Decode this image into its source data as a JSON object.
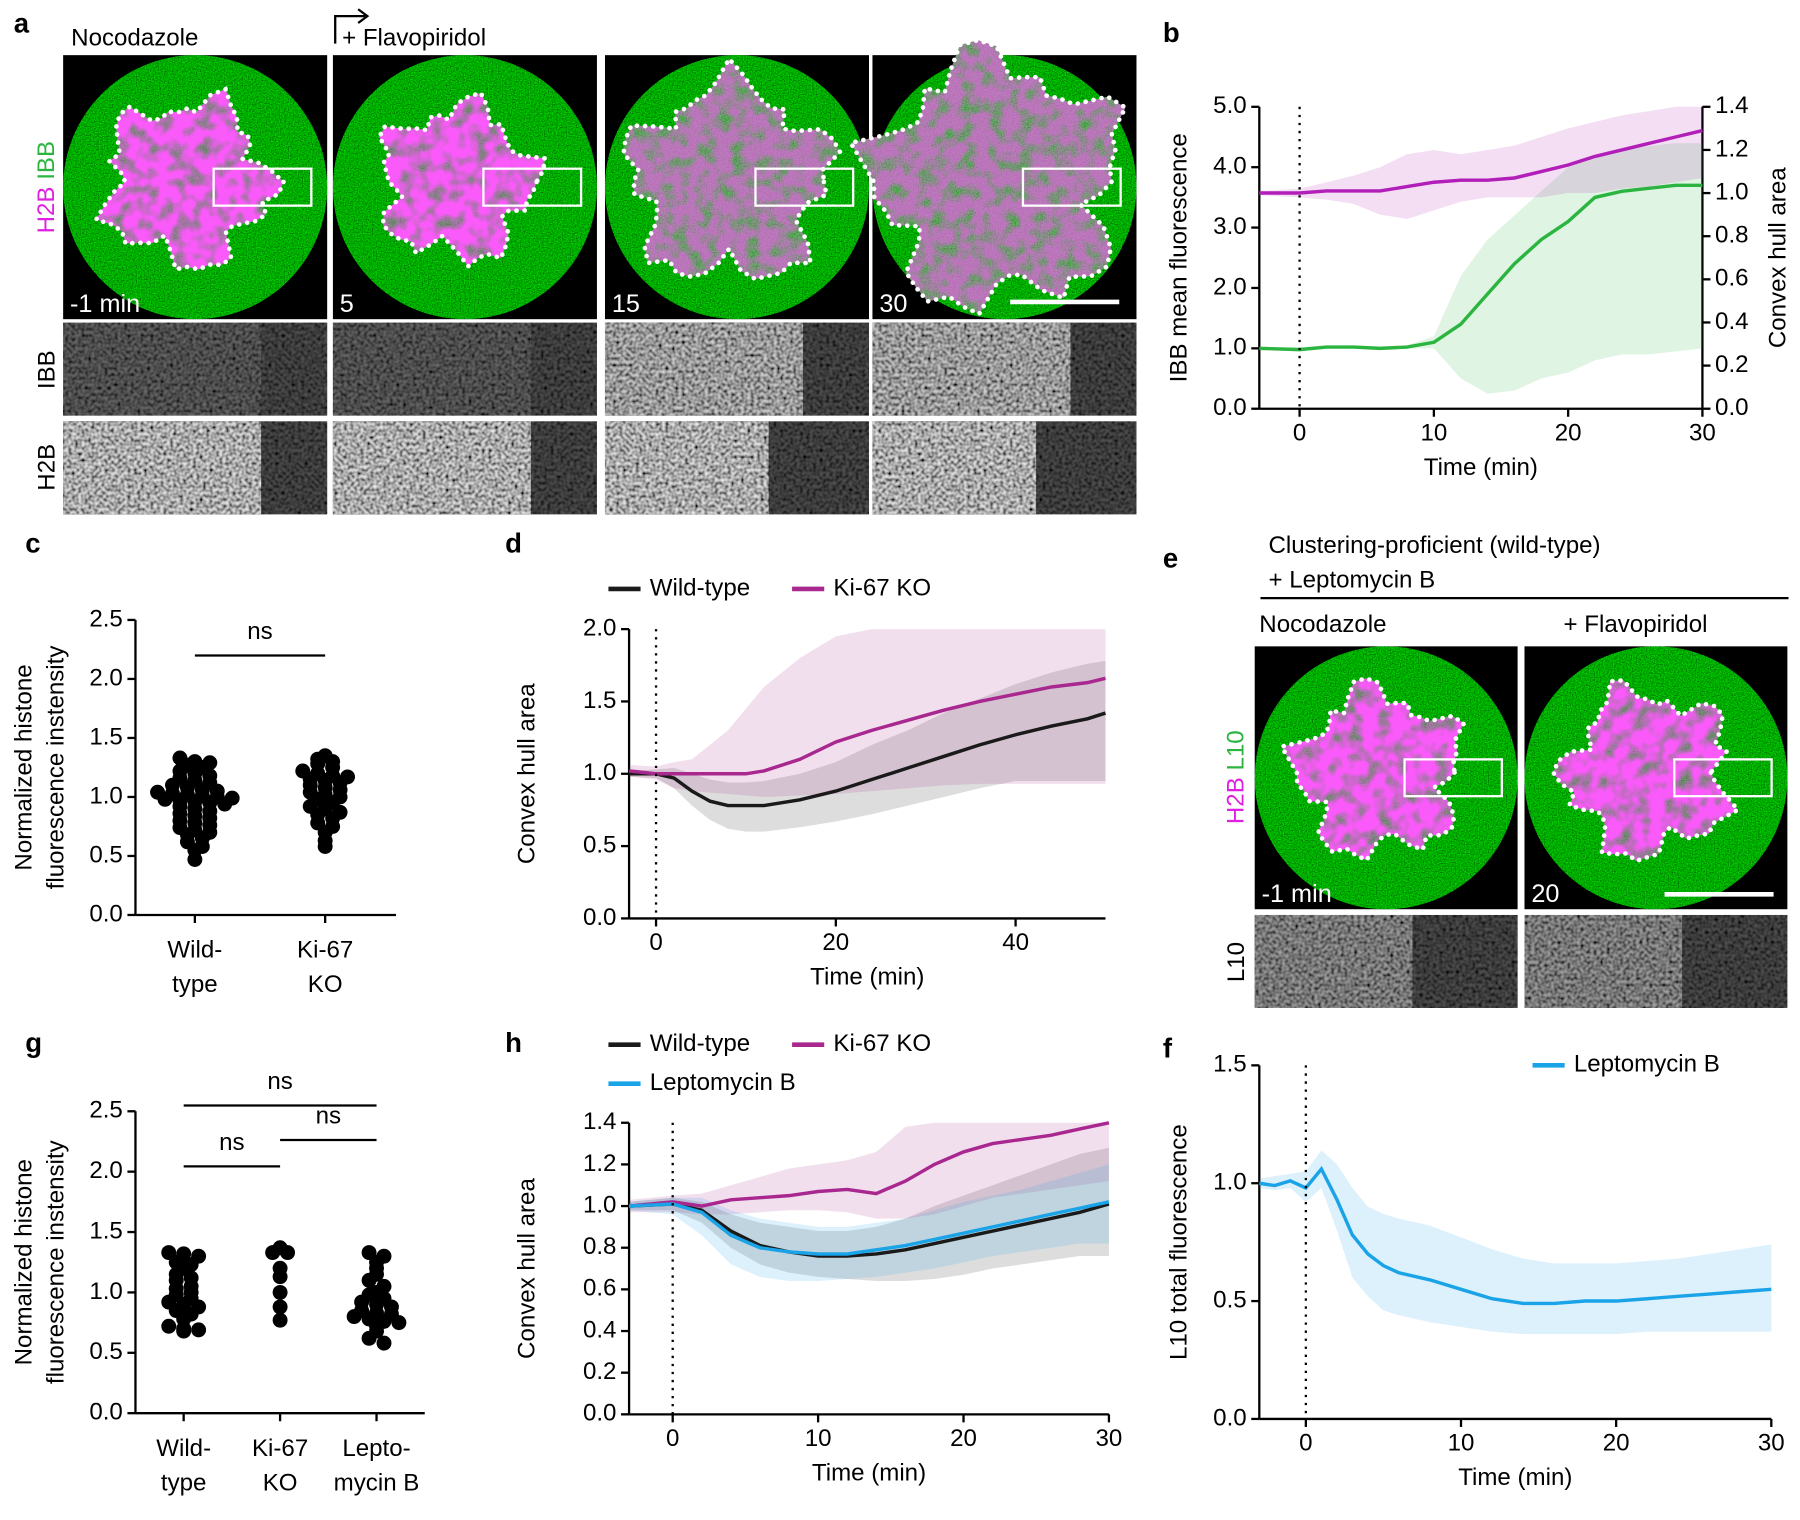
{
  "figure_a": {
    "panel": "a",
    "conditions": [
      "Nocodazole",
      "+ Flavopiridol"
    ],
    "stain": [
      "H2B",
      "IBB"
    ],
    "timepoints": [
      "-1 min",
      "5",
      "15",
      "30"
    ],
    "rows": [
      "IBB",
      "H2B"
    ]
  },
  "figure_e": {
    "panel": "e",
    "header": [
      "Clustering-proficient (wild-type)",
      "+ Leptomycin B"
    ],
    "conditions": [
      "Nocodazole",
      "+ Flavopiridol"
    ],
    "stain": [
      "H2B",
      "L10"
    ],
    "timepoints": [
      "-1 min",
      "20"
    ],
    "rows": [
      "L10"
    ]
  },
  "chart_data": [
    {
      "type": "line",
      "panel": "b",
      "xlabel": "Time (min)",
      "ylabel": "IBB mean fluorescence",
      "y2label": "Convex hull area",
      "x": [
        -3,
        0,
        2,
        4,
        6,
        8,
        10,
        12,
        14,
        16,
        18,
        20,
        22,
        24,
        26,
        28,
        30
      ],
      "xlim": [
        -3,
        30
      ],
      "xticks": [
        0,
        10,
        20,
        30
      ],
      "ylim": [
        0,
        5
      ],
      "yticks": [
        {
          "value": 0,
          "label": "0.0"
        },
        {
          "value": 1,
          "label": "1.0"
        },
        {
          "value": 2,
          "label": "2.0"
        },
        {
          "value": 3,
          "label": "3.0"
        },
        {
          "value": 4,
          "label": "4.0"
        },
        {
          "value": 5,
          "label": "5.0"
        }
      ],
      "y2lim": [
        0,
        1.4
      ],
      "y2ticks": [
        {
          "value": 0,
          "label": "0.0"
        },
        {
          "value": 0.2,
          "label": "0.2"
        },
        {
          "value": 0.4,
          "label": "0.4"
        },
        {
          "value": 0.6,
          "label": "0.6"
        },
        {
          "value": 0.8,
          "label": "0.8"
        },
        {
          "value": 1,
          "label": "1.0"
        },
        {
          "value": 1.2,
          "label": "1.2"
        },
        {
          "value": 1.4,
          "label": "1.4"
        }
      ],
      "vline": 0,
      "series": [
        {
          "color": "#2bb540",
          "values": [
            1.0,
            0.98,
            1.02,
            1.02,
            1.0,
            1.02,
            1.1,
            1.4,
            1.9,
            2.4,
            2.8,
            3.1,
            3.5,
            3.6,
            3.65,
            3.7,
            3.7
          ],
          "lower": [
            0.98,
            0.95,
            1.0,
            1.0,
            0.98,
            1.0,
            1.0,
            0.5,
            0.25,
            0.3,
            0.5,
            0.6,
            0.8,
            0.9,
            0.9,
            0.95,
            1.0
          ],
          "upper": [
            1.02,
            1.02,
            1.05,
            1.05,
            1.03,
            1.05,
            1.2,
            2.2,
            2.8,
            3.2,
            3.6,
            4.0,
            4.2,
            4.3,
            4.35,
            4.4,
            4.4
          ]
        },
        {
          "color": "#b21fb8",
          "axis": "y2",
          "values": [
            1.0,
            1.0,
            1.01,
            1.01,
            1.01,
            1.03,
            1.05,
            1.06,
            1.06,
            1.07,
            1.1,
            1.13,
            1.17,
            1.2,
            1.23,
            1.26,
            1.29
          ],
          "lower": [
            0.99,
            0.98,
            0.97,
            0.95,
            0.9,
            0.88,
            0.92,
            0.96,
            0.98,
            0.98,
            0.98,
            1.0,
            1.0,
            1.02,
            1.03,
            1.05,
            1.07
          ],
          "upper": [
            1.01,
            1.02,
            1.05,
            1.08,
            1.12,
            1.18,
            1.2,
            1.18,
            1.2,
            1.22,
            1.26,
            1.3,
            1.33,
            1.36,
            1.38,
            1.4,
            1.4
          ]
        }
      ]
    },
    {
      "type": "strip",
      "panel": "c",
      "ylabel": [
        "Normalized histone",
        "fluorescence instensity"
      ],
      "categories": [
        [
          "Wild-",
          "type"
        ],
        [
          "Ki-67",
          "KO"
        ]
      ],
      "ylim": [
        0,
        2.5
      ],
      "yticks": [
        {
          "value": 0,
          "label": "0.0"
        },
        {
          "value": 0.5,
          "label": "0.5"
        },
        {
          "value": 1,
          "label": "1.0"
        },
        {
          "value": 1.5,
          "label": "1.5"
        },
        {
          "value": 2,
          "label": "2.0"
        },
        {
          "value": 2.5,
          "label": "2.5"
        }
      ],
      "color": "#000000",
      "values": [
        [
          1.33,
          1.3,
          1.29,
          1.27,
          1.25,
          1.22,
          1.2,
          1.18,
          1.16,
          1.14,
          1.12,
          1.1,
          1.08,
          1.06,
          1.05,
          1.04,
          1.03,
          1.02,
          1.01,
          1.0,
          0.99,
          0.98,
          0.97,
          0.96,
          0.95,
          0.94,
          0.92,
          0.9,
          0.88,
          0.86,
          0.84,
          0.82,
          0.8,
          0.78,
          0.76,
          0.74,
          0.72,
          0.7,
          0.68,
          0.65,
          0.62,
          0.58,
          0.55,
          0.47
        ],
        [
          1.35,
          1.32,
          1.3,
          1.28,
          1.25,
          1.22,
          1.2,
          1.18,
          1.17,
          1.15,
          1.14,
          1.12,
          1.1,
          1.08,
          1.06,
          1.04,
          1.02,
          1.0,
          0.98,
          0.95,
          0.92,
          0.9,
          0.87,
          0.85,
          0.82,
          0.78,
          0.75,
          0.7,
          0.63,
          0.58
        ]
      ],
      "comparisons": [
        {
          "label": "ns",
          "groups": [
            0,
            1
          ]
        }
      ]
    },
    {
      "type": "line",
      "panel": "d",
      "xlabel": "Time (min)",
      "ylabel": "Convex hull area",
      "x": [
        -3,
        0,
        2,
        4,
        6,
        8,
        10,
        12,
        16,
        20,
        24,
        28,
        32,
        36,
        40,
        44,
        48,
        50
      ],
      "xlim": [
        -3,
        50
      ],
      "xticks": [
        0,
        20,
        40
      ],
      "ylim": [
        0,
        2
      ],
      "yticks": [
        {
          "value": 0,
          "label": "0.0"
        },
        {
          "value": 0.5,
          "label": "0.5"
        },
        {
          "value": 1,
          "label": "1.0"
        },
        {
          "value": 1.5,
          "label": "1.5"
        },
        {
          "value": 2,
          "label": "2.0"
        }
      ],
      "vline": 0,
      "series": [
        {
          "name": "Wild-type",
          "color": "#1a1a1a",
          "values": [
            1.0,
            1.0,
            0.97,
            0.88,
            0.81,
            0.78,
            0.78,
            0.78,
            0.82,
            0.88,
            0.96,
            1.04,
            1.12,
            1.2,
            1.27,
            1.33,
            1.38,
            1.42
          ],
          "lower": [
            0.98,
            0.97,
            0.9,
            0.78,
            0.68,
            0.62,
            0.6,
            0.6,
            0.63,
            0.67,
            0.72,
            0.78,
            0.84,
            0.9,
            0.95,
            0.95,
            0.95,
            0.95
          ],
          "upper": [
            1.02,
            1.03,
            1.04,
            1.0,
            0.96,
            0.94,
            0.94,
            0.95,
            1.0,
            1.08,
            1.2,
            1.3,
            1.42,
            1.52,
            1.62,
            1.7,
            1.76,
            1.78
          ]
        },
        {
          "name": "Ki-67 KO",
          "color": "#a8288f",
          "values": [
            1.02,
            1.0,
            1.0,
            1.0,
            1.0,
            1.0,
            1.0,
            1.02,
            1.1,
            1.22,
            1.3,
            1.37,
            1.44,
            1.5,
            1.55,
            1.6,
            1.63,
            1.66
          ],
          "lower": [
            0.98,
            0.96,
            0.9,
            0.88,
            0.87,
            0.86,
            0.85,
            0.84,
            0.85,
            0.86,
            0.88,
            0.9,
            0.92,
            0.93,
            0.93,
            0.93,
            0.93,
            0.93
          ],
          "upper": [
            1.06,
            1.05,
            1.08,
            1.1,
            1.2,
            1.3,
            1.45,
            1.6,
            1.8,
            1.95,
            2.0,
            2.0,
            2.0,
            2.0,
            2.0,
            2.0,
            2.0,
            2.0
          ]
        }
      ]
    },
    {
      "type": "strip",
      "panel": "g",
      "ylabel": [
        "Normalized histone",
        "fluorescence instensity"
      ],
      "categories": [
        [
          "Wild-",
          "type"
        ],
        [
          "Ki-67",
          "KO"
        ],
        [
          "Lepto-",
          "mycin B"
        ]
      ],
      "ylim": [
        0,
        2.5
      ],
      "yticks": [
        {
          "value": 0,
          "label": "0.0"
        },
        {
          "value": 0.5,
          "label": "0.5"
        },
        {
          "value": 1,
          "label": "1.0"
        },
        {
          "value": 1.5,
          "label": "1.5"
        },
        {
          "value": 2,
          "label": "2.0"
        },
        {
          "value": 2.5,
          "label": "2.5"
        }
      ],
      "color": "#000000",
      "values": [
        [
          1.33,
          1.32,
          1.3,
          1.25,
          1.23,
          1.2,
          1.15,
          1.12,
          1.1,
          1.05,
          1.03,
          1.0,
          0.98,
          0.95,
          0.92,
          0.9,
          0.88,
          0.85,
          0.82,
          0.78,
          0.72,
          0.7,
          0.69,
          0.68
        ],
        [
          1.37,
          1.33,
          1.33,
          1.2,
          1.13,
          1.0,
          0.88,
          0.77
        ],
        [
          1.33,
          1.3,
          1.25,
          1.2,
          1.15,
          1.1,
          1.05,
          1.0,
          0.98,
          0.95,
          0.92,
          0.9,
          0.88,
          0.85,
          0.83,
          0.82,
          0.8,
          0.78,
          0.76,
          0.75,
          0.72,
          0.68,
          0.62,
          0.58
        ]
      ],
      "comparisons": [
        {
          "label": "ns",
          "groups": [
            0,
            1
          ]
        },
        {
          "label": "ns",
          "groups": [
            1,
            2
          ]
        },
        {
          "label": "ns",
          "groups": [
            0,
            2
          ]
        }
      ]
    },
    {
      "type": "line",
      "panel": "h",
      "xlabel": "Time (min)",
      "ylabel": "Convex hull area",
      "x": [
        -3,
        0,
        2,
        4,
        6,
        8,
        10,
        12,
        14,
        16,
        18,
        20,
        22,
        24,
        26,
        28,
        30
      ],
      "xlim": [
        -3,
        30
      ],
      "xticks": [
        0,
        10,
        20,
        30
      ],
      "ylim": [
        0,
        1.4
      ],
      "yticks": [
        {
          "value": 0,
          "label": "0.0"
        },
        {
          "value": 0.2,
          "label": "0.2"
        },
        {
          "value": 0.4,
          "label": "0.4"
        },
        {
          "value": 0.6,
          "label": "0.6"
        },
        {
          "value": 0.8,
          "label": "0.8"
        },
        {
          "value": 1,
          "label": "1.0"
        },
        {
          "value": 1.2,
          "label": "1.2"
        },
        {
          "value": 1.4,
          "label": "1.4"
        }
      ],
      "vline": 0,
      "series": [
        {
          "name": "Wild-type",
          "color": "#1a1a1a",
          "values": [
            1.0,
            1.01,
            0.98,
            0.88,
            0.81,
            0.78,
            0.76,
            0.76,
            0.77,
            0.79,
            0.82,
            0.85,
            0.88,
            0.91,
            0.94,
            0.97,
            1.01
          ],
          "lower": [
            0.98,
            0.98,
            0.92,
            0.8,
            0.72,
            0.68,
            0.66,
            0.65,
            0.64,
            0.64,
            0.65,
            0.67,
            0.7,
            0.72,
            0.74,
            0.76,
            0.76
          ],
          "upper": [
            1.02,
            1.04,
            1.02,
            0.96,
            0.92,
            0.9,
            0.88,
            0.88,
            0.9,
            0.94,
            1.0,
            1.05,
            1.1,
            1.15,
            1.2,
            1.25,
            1.28
          ]
        },
        {
          "name": "Ki-67 KO",
          "color": "#a8288f",
          "values": [
            1.0,
            1.02,
            1.0,
            1.03,
            1.04,
            1.05,
            1.07,
            1.08,
            1.06,
            1.12,
            1.2,
            1.26,
            1.3,
            1.32,
            1.34,
            1.37,
            1.4
          ],
          "lower": [
            0.97,
            0.97,
            0.96,
            0.96,
            0.97,
            0.98,
            0.98,
            0.97,
            0.94,
            0.94,
            0.96,
            1.0,
            1.04,
            1.06,
            1.08,
            1.1,
            1.12
          ],
          "upper": [
            1.03,
            1.05,
            1.06,
            1.1,
            1.14,
            1.18,
            1.2,
            1.22,
            1.26,
            1.38,
            1.4,
            1.4,
            1.4,
            1.4,
            1.4,
            1.4,
            1.4
          ]
        },
        {
          "name": "Leptomycin B",
          "color": "#1ba3e8",
          "values": [
            1.0,
            1.01,
            0.97,
            0.86,
            0.8,
            0.78,
            0.77,
            0.77,
            0.79,
            0.81,
            0.84,
            0.87,
            0.9,
            0.93,
            0.96,
            0.99,
            1.02
          ],
          "lower": [
            0.98,
            0.96,
            0.86,
            0.72,
            0.66,
            0.64,
            0.64,
            0.65,
            0.66,
            0.68,
            0.7,
            0.73,
            0.76,
            0.78,
            0.8,
            0.82,
            0.82
          ],
          "upper": [
            1.02,
            1.04,
            1.04,
            0.98,
            0.94,
            0.92,
            0.9,
            0.9,
            0.92,
            0.94,
            0.98,
            1.02,
            1.05,
            1.08,
            1.12,
            1.16,
            1.2
          ]
        }
      ]
    },
    {
      "type": "line",
      "panel": "f",
      "xlabel": "Time (min)",
      "ylabel": "L10 total fluorescence",
      "x": [
        -3,
        -2,
        -1,
        0,
        1,
        2,
        3,
        4,
        5,
        6,
        8,
        10,
        12,
        14,
        16,
        18,
        20,
        22,
        24,
        26,
        28,
        30
      ],
      "xlim": [
        -3,
        30
      ],
      "xticks": [
        0,
        10,
        20,
        30
      ],
      "ylim": [
        0,
        1.5
      ],
      "yticks": [
        {
          "value": 0,
          "label": "0.0"
        },
        {
          "value": 0.5,
          "label": "0.5"
        },
        {
          "value": 1,
          "label": "1.0"
        },
        {
          "value": 1.5,
          "label": "1.5"
        }
      ],
      "vline": 0,
      "series": [
        {
          "name": "Leptomycin B",
          "color": "#1ba3e8",
          "values": [
            1.0,
            0.99,
            1.01,
            0.98,
            1.06,
            0.93,
            0.78,
            0.7,
            0.65,
            0.62,
            0.59,
            0.55,
            0.51,
            0.49,
            0.49,
            0.5,
            0.5,
            0.51,
            0.52,
            0.53,
            0.54,
            0.55
          ],
          "lower": [
            0.98,
            0.97,
            0.98,
            0.92,
            0.98,
            0.8,
            0.6,
            0.52,
            0.46,
            0.44,
            0.41,
            0.39,
            0.37,
            0.36,
            0.36,
            0.36,
            0.36,
            0.37,
            0.37,
            0.37,
            0.37,
            0.37
          ],
          "upper": [
            1.02,
            1.03,
            1.04,
            1.05,
            1.14,
            1.08,
            0.98,
            0.9,
            0.87,
            0.85,
            0.82,
            0.77,
            0.72,
            0.68,
            0.66,
            0.66,
            0.66,
            0.67,
            0.68,
            0.7,
            0.72,
            0.74
          ]
        }
      ]
    }
  ]
}
